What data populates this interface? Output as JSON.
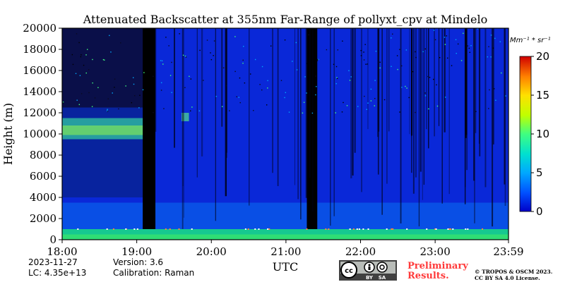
{
  "chart_data": {
    "type": "heatmap",
    "title": "Attenuated Backscatter at 355nm Far-Range of pollyxt_cpv at Mindelo",
    "xlabel": "UTC",
    "ylabel": "Height (m)",
    "x_tick_labels": [
      "18:00",
      "19:00",
      "20:00",
      "21:00",
      "22:00",
      "23:00",
      "23:59"
    ],
    "x_tick_hours": [
      18,
      19,
      20,
      21,
      22,
      23,
      23.9833
    ],
    "xlim": [
      18,
      23.9833
    ],
    "y_ticks": [
      0,
      2000,
      4000,
      6000,
      8000,
      10000,
      12000,
      14000,
      16000,
      18000,
      20000
    ],
    "ylim": [
      0,
      20000
    ],
    "colorbar": {
      "unit_label": "Mm⁻¹ * sr⁻¹",
      "ticks": [
        0,
        5,
        10,
        15,
        20
      ],
      "range": [
        0,
        20
      ],
      "colormap": [
        "#0000c8",
        "#0050ff",
        "#00a8ff",
        "#00e0d0",
        "#40ff80",
        "#c0ff00",
        "#ffe000",
        "#ff8000",
        "#ff2000",
        "#d00000"
      ]
    },
    "features": {
      "aerosol_layer_top_m": 1000,
      "cirrus_layer_m": [
        9500,
        12500
      ],
      "cirrus_time_utc": [
        18,
        19.75
      ],
      "missing_data_utc": [
        [
          19.08,
          19.25
        ],
        [
          21.28,
          21.42
        ]
      ]
    }
  },
  "info": {
    "date": "2023-11-27",
    "version": "Version: 3.6",
    "lc": "LC: 4.35e+13",
    "calibration": "Calibration: Raman"
  },
  "footer": {
    "license_badge_text": [
      "cc",
      "BY",
      "SA"
    ],
    "preliminary": [
      "Preliminary",
      "Results."
    ],
    "copyright": [
      "© TROPOS & OSCM 2023.",
      "CC BY SA 4.0 License."
    ]
  },
  "colors": {
    "preliminary_text": "#ff3a3a",
    "badge_bg": "#404040"
  }
}
